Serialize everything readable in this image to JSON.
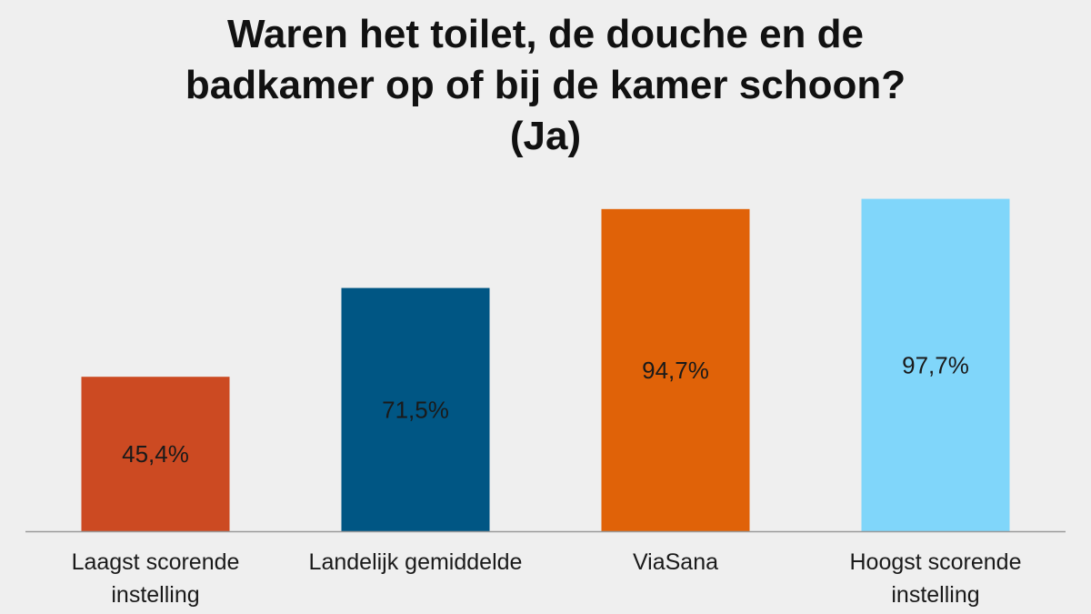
{
  "chart_data": {
    "type": "bar",
    "title_lines": [
      "Waren het toilet, de douche en de",
      "badkamer op of bij de kamer schoon?",
      "(Ja)"
    ],
    "categories": [
      [
        "Laagst scorende",
        "instelling"
      ],
      [
        "Landelijk gemiddelde"
      ],
      [
        "ViaSana"
      ],
      [
        "Hoogst scorende",
        "instelling"
      ]
    ],
    "values": [
      45.4,
      71.5,
      94.7,
      97.7
    ],
    "value_labels": [
      "45,4%",
      "71,5%",
      "94,7%",
      "97,7%"
    ],
    "colors": [
      "#cc4a22",
      "#005684",
      "#e06208",
      "#80d6fa"
    ],
    "ylim": [
      0,
      100
    ],
    "grid": false,
    "legend": "none"
  }
}
